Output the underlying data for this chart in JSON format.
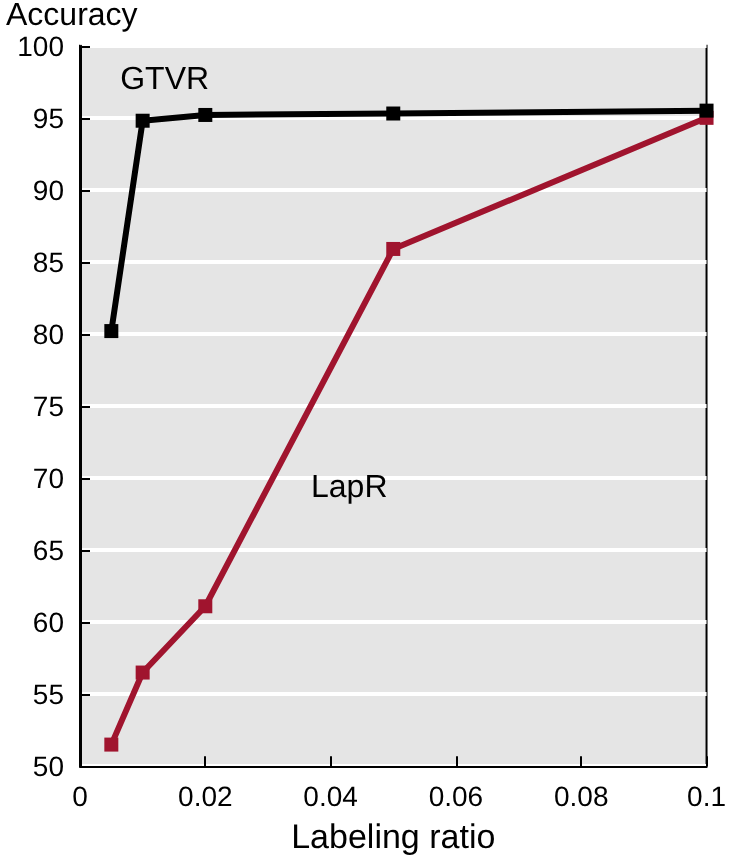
{
  "chart_data": {
    "type": "line",
    "xlabel": "Labeling ratio",
    "ylabel": "Accuracy",
    "x": [
      0.005,
      0.01,
      0.02,
      0.05,
      0.1
    ],
    "series": [
      {
        "name": "GTVR",
        "color": "#000000",
        "values": [
          80.2,
          94.8,
          95.2,
          95.3,
          95.5
        ]
      },
      {
        "name": "LapR",
        "color": "#a0142e",
        "values": [
          51.5,
          56.5,
          61.1,
          85.9,
          95
        ]
      }
    ],
    "xlim": [
      0,
      0.1
    ],
    "xticks": [
      0,
      0.02,
      0.04,
      0.06,
      0.08,
      0.1
    ],
    "ylim": [
      50,
      100
    ],
    "yticks": [
      50,
      55,
      60,
      65,
      70,
      75,
      80,
      85,
      90,
      95,
      100
    ],
    "grid": "y",
    "legend": false,
    "marker": "square",
    "line_style": "solid"
  }
}
